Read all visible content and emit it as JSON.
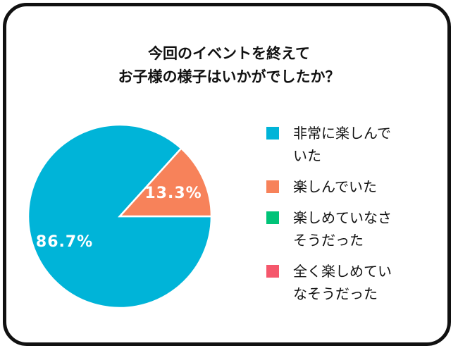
{
  "chart_data": {
    "type": "pie",
    "title_lines": [
      "今回のイベントを終えて",
      "お子様の様子はいかがでしたか？"
    ],
    "categories": [
      "非常に楽しんでいた",
      "楽しんでいた",
      "楽しめていなさそうだった",
      "全く楽しめていなそうだった"
    ],
    "legend_lines": [
      [
        "非常に楽しんで",
        "いた"
      ],
      [
        "楽しんでいた"
      ],
      [
        "楽しめていなさ",
        "そうだった"
      ],
      [
        "全く楽しめてい",
        "なそうだった"
      ]
    ],
    "values": [
      86.7,
      13.3,
      0,
      0
    ],
    "data_labels": [
      "86.7%",
      "13.3%",
      "",
      ""
    ],
    "colors": [
      "#00B4D8",
      "#F7825A",
      "#00C378",
      "#F5576C"
    ],
    "legend_position": "right"
  }
}
